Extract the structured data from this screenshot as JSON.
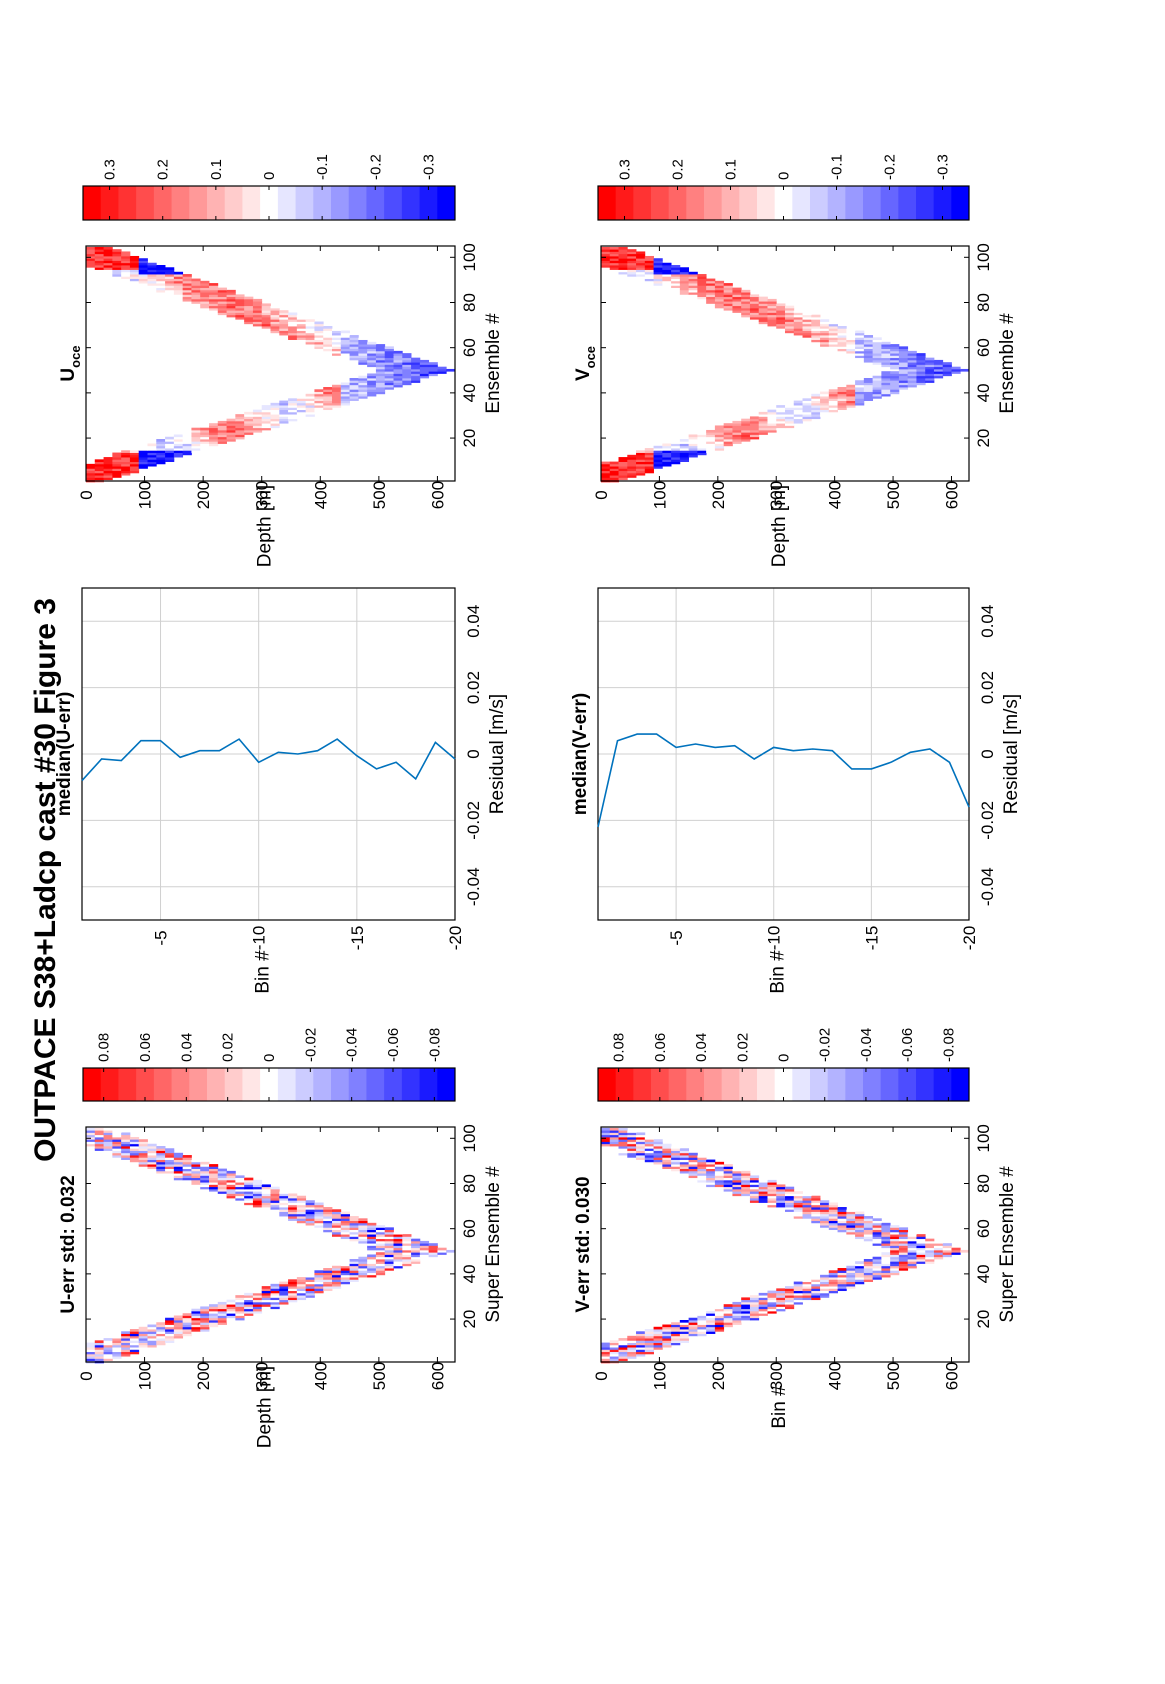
{
  "figure_title": "OUTPACE S38+Ladcp cast #30  Figure 3",
  "colormap": {
    "red": "#ff0000",
    "white": "#ffffff",
    "blue": "#0000ff"
  },
  "chart_data": [
    {
      "id": "u_err",
      "type": "heatmap",
      "title": "U-err std: 0.032",
      "xlabel": "Super Ensemble #",
      "ylabel": "Depth [m]",
      "xlim": [
        1,
        105
      ],
      "ylim": [
        0,
        630
      ],
      "xticks": [
        "20",
        "40",
        "60",
        "80",
        "100"
      ],
      "yticks": [
        "0",
        "100",
        "200",
        "300",
        "400",
        "500",
        "600"
      ],
      "pattern": "V-shaped cast profile, max depth ~610 m at super ensemble ~50",
      "std": 0.032,
      "colorbar": {
        "clim": [
          -0.09,
          0.09
        ],
        "ticks": [
          "0.08",
          "0.06",
          "0.04",
          "0.02",
          "0",
          "-0.02",
          "-0.04",
          "-0.06",
          "-0.08"
        ]
      }
    },
    {
      "id": "u_median",
      "type": "line",
      "title": "median(U-err)",
      "xlabel": "Residual [m/s]",
      "ylabel": "Bin #",
      "xlim": [
        -0.05,
        0.05
      ],
      "ylim": [
        -20,
        -1
      ],
      "xticks": [
        "-0.04",
        "-0.02",
        "0",
        "0.02",
        "0.04"
      ],
      "yticks": [
        "-5",
        "-10",
        "-15",
        "-20"
      ],
      "grid": true,
      "bins": [
        -1,
        -2,
        -3,
        -4,
        -5,
        -6,
        -7,
        -8,
        -9,
        -10,
        -11,
        -12,
        -13,
        -14,
        -15,
        -16,
        -17,
        -18,
        -19,
        -20
      ],
      "values": [
        -0.008,
        -0.0015,
        -0.002,
        0.004,
        0.004,
        -0.001,
        0.001,
        0.001,
        0.0045,
        -0.0025,
        0.0005,
        0.0,
        0.001,
        0.0045,
        -0.0005,
        -0.0045,
        -0.0025,
        -0.0075,
        0.0035,
        -0.0015
      ]
    },
    {
      "id": "u_oce",
      "type": "heatmap",
      "title": "U",
      "title_sub": "oce",
      "xlabel": "Ensemble #",
      "ylabel": "Depth [m]",
      "xlim": [
        1,
        105
      ],
      "ylim": [
        0,
        630
      ],
      "xticks": [
        "20",
        "40",
        "60",
        "80",
        "100"
      ],
      "yticks": [
        "0",
        "100",
        "200",
        "300",
        "400",
        "500",
        "600"
      ],
      "pattern": "V-shaped cast profile, max depth ~610 m at ensemble ~50",
      "colorbar": {
        "clim": [
          -0.35,
          0.35
        ],
        "ticks": [
          "0.3",
          "0.2",
          "0.1",
          "0",
          "-0.1",
          "-0.2",
          "-0.3"
        ]
      }
    },
    {
      "id": "v_err",
      "type": "heatmap",
      "title": "V-err std: 0.030",
      "xlabel": "Super Ensemble #",
      "ylabel": "Bin #",
      "xlim": [
        1,
        105
      ],
      "ylim": [
        0,
        630
      ],
      "xticks": [
        "20",
        "40",
        "60",
        "80",
        "100"
      ],
      "yticks": [
        "0",
        "100",
        "200",
        "300",
        "400",
        "500",
        "600"
      ],
      "pattern": "V-shaped cast profile, max depth ~610 m at super ensemble ~50",
      "std": 0.03,
      "colorbar": {
        "clim": [
          -0.09,
          0.09
        ],
        "ticks": [
          "0.08",
          "0.06",
          "0.04",
          "0.02",
          "0",
          "-0.02",
          "-0.04",
          "-0.06",
          "-0.08"
        ]
      }
    },
    {
      "id": "v_median",
      "type": "line",
      "title": "median(V-err)",
      "xlabel": "Residual [m/s]",
      "ylabel": "Bin #",
      "xlim": [
        -0.05,
        0.05
      ],
      "ylim": [
        -20,
        -1
      ],
      "xticks": [
        "-0.04",
        "-0.02",
        "0",
        "0.02",
        "0.04"
      ],
      "yticks": [
        "-5",
        "-10",
        "-15",
        "-20"
      ],
      "grid": true,
      "bins": [
        -1,
        -2,
        -3,
        -4,
        -5,
        -6,
        -7,
        -8,
        -9,
        -10,
        -11,
        -12,
        -13,
        -14,
        -15,
        -16,
        -17,
        -18,
        -19,
        -20
      ],
      "values": [
        -0.022,
        0.004,
        0.006,
        0.006,
        0.002,
        0.003,
        0.002,
        0.0025,
        -0.0015,
        0.002,
        0.001,
        0.0015,
        0.001,
        -0.0045,
        -0.0045,
        -0.0025,
        0.0005,
        0.0015,
        -0.0025,
        -0.016
      ]
    },
    {
      "id": "v_oce",
      "type": "heatmap",
      "title": "V",
      "title_sub": "oce",
      "xlabel": "Ensemble #",
      "ylabel": "Depth [m]",
      "xlim": [
        1,
        105
      ],
      "ylim": [
        0,
        630
      ],
      "xticks": [
        "20",
        "40",
        "60",
        "80",
        "100"
      ],
      "yticks": [
        "0",
        "100",
        "200",
        "300",
        "400",
        "500",
        "600"
      ],
      "pattern": "V-shaped cast profile, max depth ~610 m at ensemble ~50",
      "colorbar": {
        "clim": [
          -0.35,
          0.35
        ],
        "ticks": [
          "0.3",
          "0.2",
          "0.1",
          "0",
          "-0.1",
          "-0.2",
          "-0.3"
        ]
      }
    }
  ]
}
